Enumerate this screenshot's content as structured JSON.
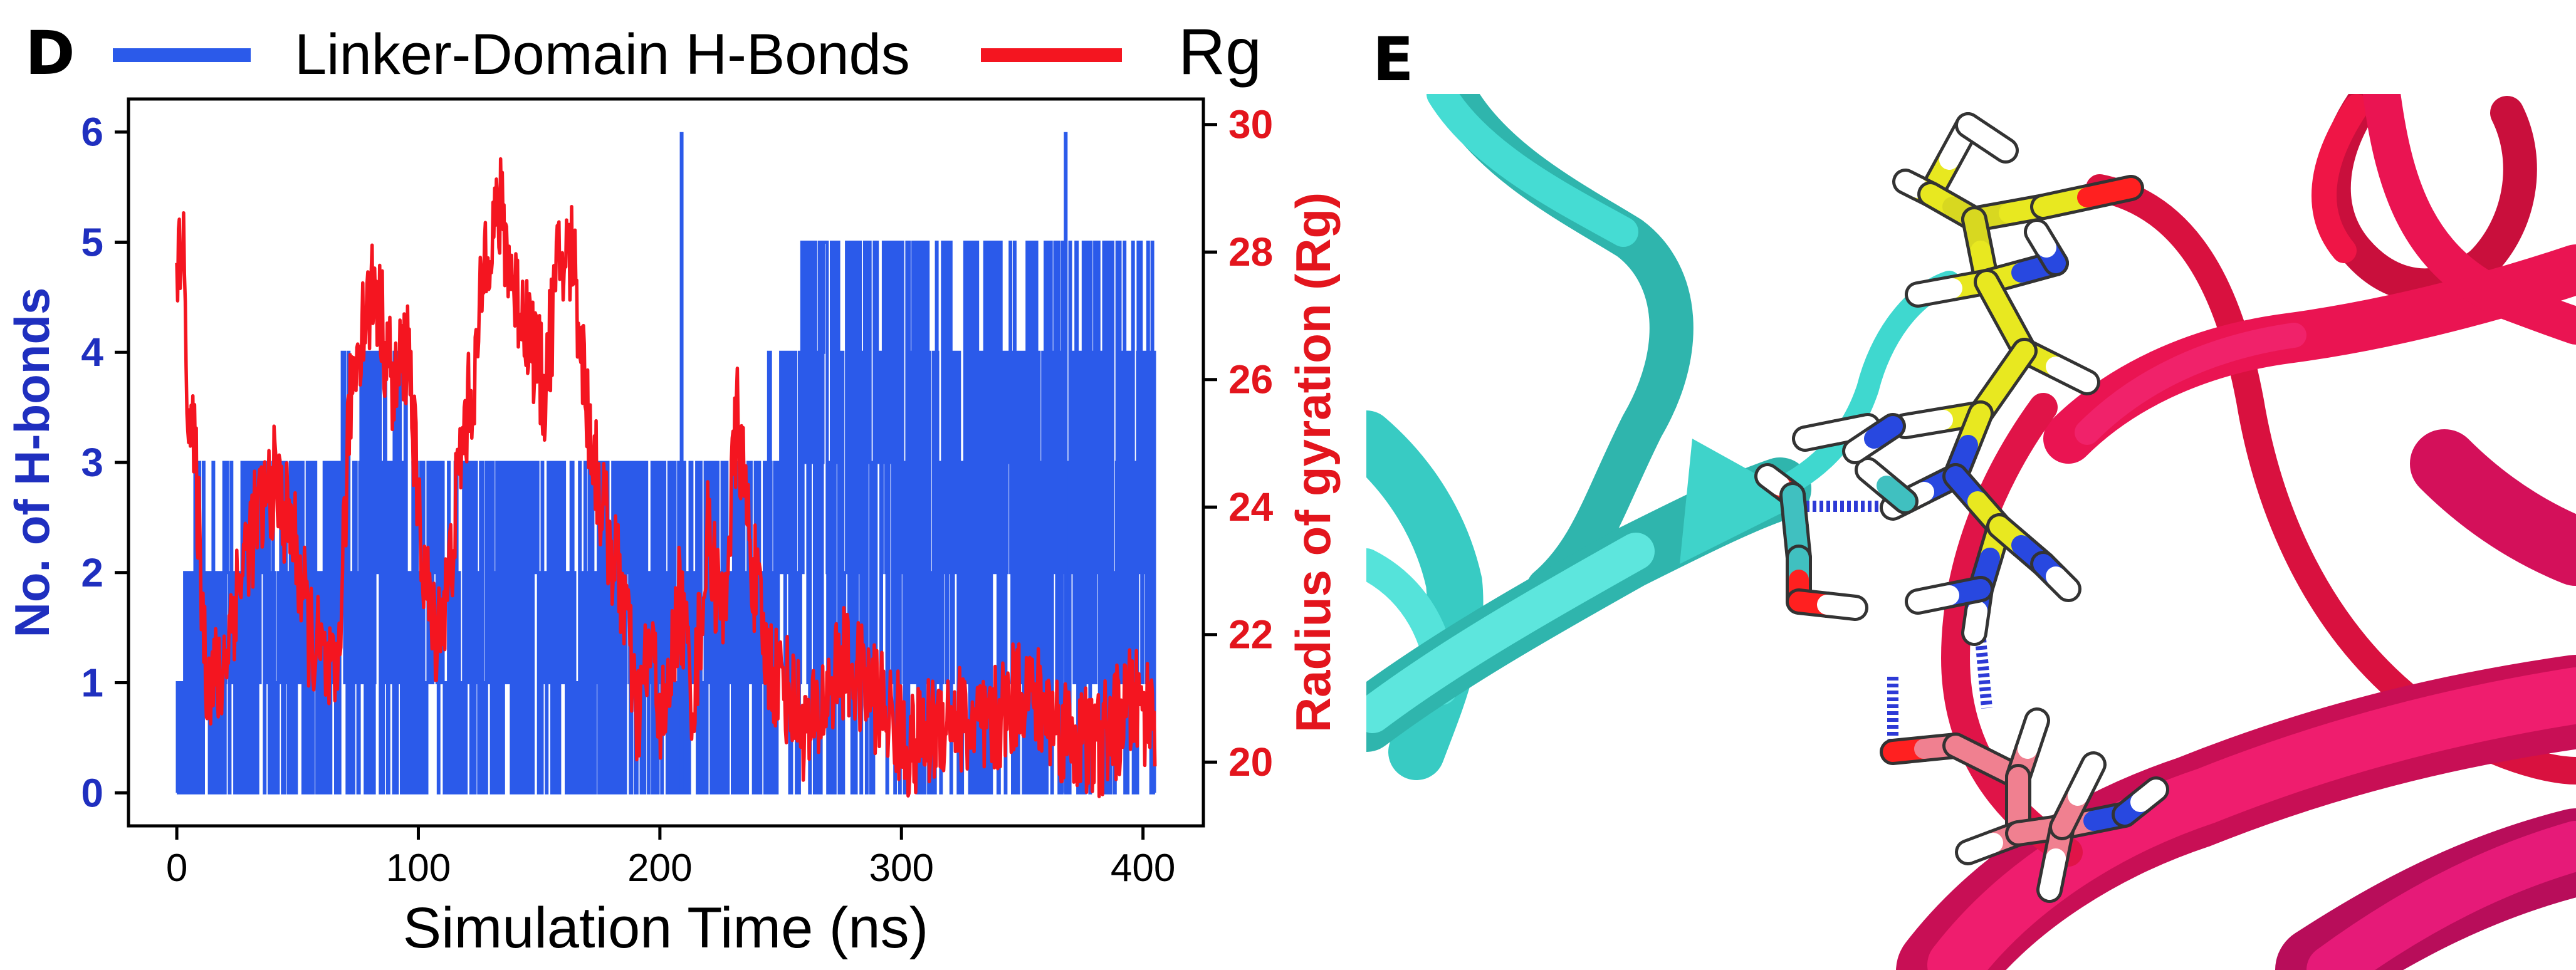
{
  "panels": {
    "left": "D",
    "right": "E"
  },
  "colors": {
    "hbonds": "#2b5aea",
    "rg": "#f41520",
    "hbonds_axis_text": "#1f2fbf",
    "rg_axis_text": "#e3151d",
    "axis": "#000000",
    "cyan": "#3fd8cf",
    "crimson": "#ef1546",
    "magenta": "#e0157a"
  },
  "chart_data": {
    "type": "line",
    "xlabel": "Simulation Time (ns)",
    "ylabel": "No. of H-bonds",
    "y2label": "Radius of gyration (Rg)",
    "xlim": [
      -20,
      425
    ],
    "ylim": [
      -0.3,
      6.3
    ],
    "y2lim": [
      19.0,
      30.4
    ],
    "xticks": [
      "0",
      "100",
      "200",
      "300",
      "400"
    ],
    "yticks": [
      "0",
      "1",
      "2",
      "3",
      "4",
      "5",
      "6"
    ],
    "y2ticks": [
      "20",
      "22",
      "24",
      "26",
      "28",
      "30"
    ],
    "legend_position": "top",
    "grid": false,
    "series": [
      {
        "name": "Linker-Domain H-Bonds",
        "axis": "left",
        "style": "fluctuating integer count 0–N, dense",
        "segments": [
          {
            "x_range": [
              0,
              3
            ],
            "levels": [
              0,
              1
            ]
          },
          {
            "x_range": [
              3,
              7
            ],
            "levels": [
              0,
              1,
              2
            ]
          },
          {
            "x_range": [
              7,
              50
            ],
            "levels": [
              0,
              1,
              2,
              3
            ]
          },
          {
            "x_range": [
              50,
              65
            ],
            "levels": [
              0,
              1,
              2,
              3
            ]
          },
          {
            "x_range": [
              65,
              95
            ],
            "levels": [
              0,
              1,
              2,
              3,
              4
            ]
          },
          {
            "x_range": [
              95,
              130
            ],
            "levels": [
              0,
              1,
              2,
              3
            ]
          },
          {
            "x_range": [
              130,
              200
            ],
            "levels": [
              0,
              1,
              2,
              3
            ]
          },
          {
            "x_range": [
              200,
              215
            ],
            "levels": [
              0,
              1,
              2,
              3
            ]
          },
          {
            "x_range": [
              215,
              245
            ],
            "levels": [
              0,
              1,
              2,
              3
            ]
          },
          {
            "x_range": [
              245,
              258
            ],
            "levels": [
              0,
              1,
              2,
              3,
              4
            ]
          },
          {
            "x_range": [
              258,
              405
            ],
            "levels": [
              0,
              1,
              2,
              3,
              4,
              5
            ]
          }
        ],
        "spikes": [
          {
            "x": 209,
            "y": 6
          },
          {
            "x": 368,
            "y": 6
          }
        ]
      },
      {
        "name": "Rg",
        "axis": "right",
        "style": "noisy trajectory",
        "anchors": {
          "x": [
            0,
            2,
            5,
            8,
            12,
            18,
            22,
            30,
            40,
            48,
            55,
            60,
            66,
            72,
            76,
            82,
            90,
            96,
            100,
            106,
            112,
            118,
            124,
            128,
            134,
            140,
            146,
            152,
            158,
            164,
            170,
            176,
            182,
            186,
            190,
            196,
            202,
            208,
            214,
            220,
            226,
            232,
            238,
            244,
            252,
            262,
            275,
            290,
            305,
            320,
            335,
            350,
            365,
            380,
            395,
            405
          ],
          "y": [
            27.0,
            28.6,
            25.5,
            24.5,
            21.5,
            21.2,
            22.2,
            23.5,
            24.4,
            23.6,
            22.0,
            21.6,
            21.0,
            25.8,
            26.8,
            27.5,
            25.8,
            26.6,
            23.8,
            22.0,
            22.6,
            25.0,
            26.2,
            28.2,
            28.6,
            27.4,
            26.8,
            25.8,
            27.8,
            28.0,
            25.5,
            24.0,
            23.0,
            22.5,
            20.6,
            21.8,
            20.5,
            22.6,
            21.0,
            23.6,
            22.2,
            25.4,
            23.2,
            21.6,
            21.2,
            20.4,
            21.6,
            21.0,
            20.2,
            20.8,
            20.4,
            21.2,
            20.6,
            20.2,
            20.9,
            20.8
          ]
        },
        "noise_amplitude": 0.9
      }
    ]
  }
}
